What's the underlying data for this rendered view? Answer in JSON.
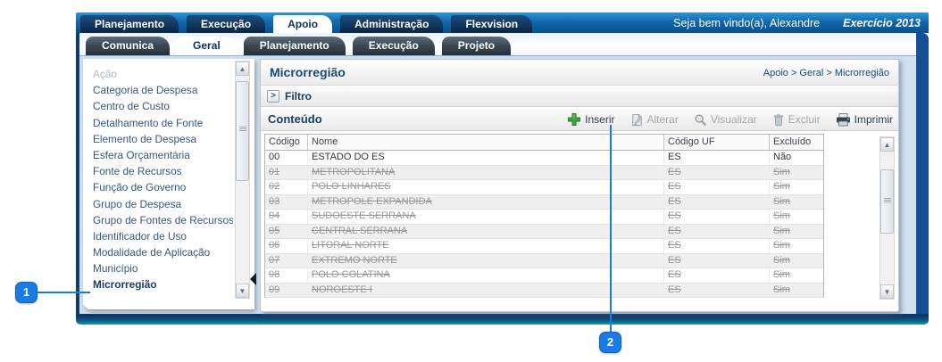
{
  "header": {
    "tabs": [
      "Planejamento",
      "Execução",
      "Apoio",
      "Administração",
      "Flexvision"
    ],
    "active_tab": "Apoio",
    "welcome": "Seja bem vindo(a), Alexandre",
    "exercise": "Exercício 2013"
  },
  "subtabs": {
    "tabs": [
      "Comunica",
      "Geral",
      "Planejamento",
      "Execução",
      "Projeto"
    ],
    "active": "Geral"
  },
  "sidebar": {
    "items": [
      {
        "label": "Ação",
        "state": "disabled"
      },
      {
        "label": "Categoria de Despesa",
        "state": "normal"
      },
      {
        "label": "Centro de Custo",
        "state": "normal"
      },
      {
        "label": "Detalhamento de Fonte",
        "state": "normal"
      },
      {
        "label": "Elemento de Despesa",
        "state": "normal"
      },
      {
        "label": "Esfera Orçamentária",
        "state": "normal"
      },
      {
        "label": "Fonte de Recursos",
        "state": "normal"
      },
      {
        "label": "Função de Governo",
        "state": "normal"
      },
      {
        "label": "Grupo de Despesa",
        "state": "normal"
      },
      {
        "label": "Grupo de Fontes de Recursos",
        "state": "normal"
      },
      {
        "label": "Identificador de Uso",
        "state": "normal"
      },
      {
        "label": "Modalidade de Aplicação",
        "state": "normal"
      },
      {
        "label": "Município",
        "state": "normal"
      },
      {
        "label": "Microrregião",
        "state": "selected"
      }
    ]
  },
  "content": {
    "title": "Microrregião",
    "breadcrumb": "Apoio > Geral > Microrregião",
    "filter_label": "Filtro",
    "section_label": "Conteúdo",
    "toolbar": [
      {
        "label": "Inserir",
        "icon": "insert-plus-icon",
        "enabled": true
      },
      {
        "label": "Alterar",
        "icon": "edit-page-icon",
        "enabled": false
      },
      {
        "label": "Visualizar",
        "icon": "magnifier-icon",
        "enabled": false
      },
      {
        "label": "Excluir",
        "icon": "trash-icon",
        "enabled": false
      },
      {
        "label": "Imprimir",
        "icon": "printer-icon",
        "enabled": true
      }
    ],
    "table": {
      "columns": [
        "Código",
        "Nome",
        "Código UF",
        "Excluído"
      ],
      "rows": [
        {
          "codigo": "00",
          "nome": "ESTADO DO ES",
          "uf": "ES",
          "excluido": "Não",
          "struck": false
        },
        {
          "codigo": "01",
          "nome": "METROPOLITANA",
          "uf": "ES",
          "excluido": "Sim",
          "struck": true
        },
        {
          "codigo": "02",
          "nome": "POLO LINHARES",
          "uf": "ES",
          "excluido": "Sim",
          "struck": true
        },
        {
          "codigo": "03",
          "nome": "METROPOLE EXPANDIDA",
          "uf": "ES",
          "excluido": "Sim",
          "struck": true
        },
        {
          "codigo": "04",
          "nome": "SUDOESTE SERRANA",
          "uf": "ES",
          "excluido": "Sim",
          "struck": true
        },
        {
          "codigo": "05",
          "nome": "CENTRAL SERRANA",
          "uf": "ES",
          "excluido": "Sim",
          "struck": true
        },
        {
          "codigo": "06",
          "nome": "LITORAL NORTE",
          "uf": "ES",
          "excluido": "Sim",
          "struck": true
        },
        {
          "codigo": "07",
          "nome": "EXTREMO NORTE",
          "uf": "ES",
          "excluido": "Sim",
          "struck": true
        },
        {
          "codigo": "08",
          "nome": "POLO COLATINA",
          "uf": "ES",
          "excluido": "Sim",
          "struck": true
        },
        {
          "codigo": "09",
          "nome": "NOROESTE I",
          "uf": "ES",
          "excluido": "Sim",
          "struck": true
        }
      ]
    }
  },
  "icons": {
    "filter_expand": ">",
    "scroll_up": "▲",
    "scroll_down": "▼"
  },
  "callouts": [
    {
      "number": "1",
      "target": "sidebar-item-microrregiao"
    },
    {
      "number": "2",
      "target": "inserir-button"
    }
  ],
  "colors": {
    "callout_blue": "#1a7be4",
    "inserir_green": "#3fa33a",
    "navy_text": "#174a7c"
  }
}
